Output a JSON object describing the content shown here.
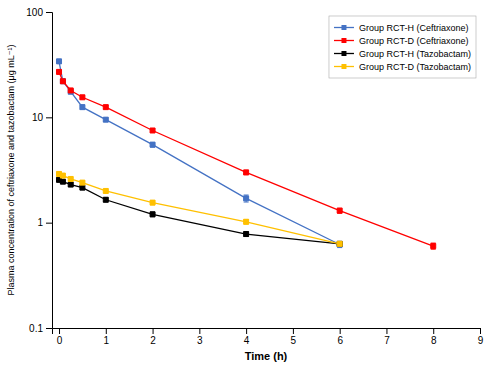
{
  "chart_data": {
    "type": "line",
    "xlabel": "Time (h)",
    "ylabel": "Plasma concentration of ceftriaxone and tazobactam (μg mL⁻¹)",
    "log": "y",
    "grid": false,
    "legend": "upper right",
    "xlim": [
      -0.15,
      9
    ],
    "ylim": [
      0.1,
      100
    ],
    "xticks": [
      0,
      1,
      2,
      3,
      4,
      5,
      6,
      7,
      8,
      9
    ],
    "yticks": [
      0.1,
      1,
      10,
      100
    ],
    "series": [
      {
        "name": "Group RCT-H (Ceftriaxone)",
        "color": "#4472C4",
        "marker": "square",
        "x": [
          0.0,
          0.083,
          0.25,
          0.5,
          1.0,
          2.0,
          4.0,
          6.0
        ],
        "values": [
          34.0,
          22.0,
          17.5,
          12.5,
          9.5,
          5.5,
          1.7,
          0.62
        ],
        "errors": [
          1.5,
          0.9,
          0.7,
          0.55,
          0.38,
          0.28,
          0.13,
          0.04
        ]
      },
      {
        "name": "Group RCT-D (Ceftriaxone)",
        "color": "#FF0000",
        "marker": "square",
        "x": [
          0.0,
          0.083,
          0.25,
          0.5,
          1.0,
          2.0,
          4.0,
          6.0,
          8.0
        ],
        "values": [
          27.0,
          22.0,
          18.0,
          15.5,
          12.5,
          7.5,
          3.0,
          1.3,
          0.6
        ],
        "errors": [
          1.1,
          0.8,
          0.7,
          0.55,
          0.45,
          0.28,
          0.14,
          0.07,
          0.04
        ]
      },
      {
        "name": "Group RCT-H (Tazobactam)",
        "color": "#000000",
        "marker": "square",
        "x": [
          0.0,
          0.083,
          0.25,
          0.5,
          1.0,
          2.0,
          4.0,
          6.0
        ],
        "values": [
          2.55,
          2.45,
          2.3,
          2.15,
          1.65,
          1.2,
          0.78,
          0.63
        ],
        "errors": [
          0.1,
          0.09,
          0.09,
          0.08,
          0.07,
          0.06,
          0.04,
          0.03
        ]
      },
      {
        "name": "Group RCT-D (Tazobactam)",
        "color": "#FFC000",
        "marker": "square",
        "x": [
          0.0,
          0.083,
          0.25,
          0.5,
          1.0,
          2.0,
          4.0,
          6.0
        ],
        "values": [
          2.9,
          2.8,
          2.6,
          2.4,
          2.0,
          1.55,
          1.02,
          0.63
        ],
        "errors": [
          0.12,
          0.11,
          0.1,
          0.09,
          0.08,
          0.07,
          0.05,
          0.03
        ]
      }
    ]
  }
}
